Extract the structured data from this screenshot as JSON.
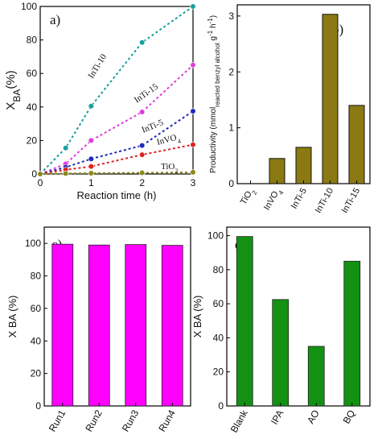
{
  "chart_data": [
    {
      "panel": "a)",
      "type": "scatter",
      "xlabel": "Reaction time (h)",
      "ylabel_main": "X",
      "ylabel_sub": "BA",
      "ylabel_unit": "(%)",
      "xlim": [
        0,
        3
      ],
      "ylim": [
        0,
        100
      ],
      "xticks": [
        "0",
        "1",
        "2",
        "3"
      ],
      "yticks": [
        "0",
        "20",
        "40",
        "60",
        "80",
        "100"
      ],
      "series": [
        {
          "name": "InTi-10",
          "color": "#1a9e9e",
          "x": [
            0,
            0.5,
            1,
            2,
            3
          ],
          "y": [
            0,
            15.5,
            40.5,
            78.5,
            100
          ]
        },
        {
          "name": "InTi-15",
          "color": "#dd3ddd",
          "x": [
            0,
            0.5,
            1,
            2,
            3
          ],
          "y": [
            0,
            6,
            20,
            37,
            65
          ]
        },
        {
          "name": "InTi-5",
          "color": "#1d2bb8",
          "x": [
            0,
            0.5,
            1,
            2,
            3
          ],
          "y": [
            0,
            4,
            9,
            17,
            37.5
          ]
        },
        {
          "name": "InVO",
          "sub": "4",
          "color": "#dd2222",
          "x": [
            0,
            0.5,
            1,
            2,
            3
          ],
          "y": [
            0,
            2.5,
            4.5,
            11.5,
            17.5
          ]
        },
        {
          "name": "TiO",
          "sub": "2",
          "color": "#8a8a1a",
          "x": [
            0,
            0.5,
            1,
            2,
            3
          ],
          "y": [
            0,
            0.3,
            0.5,
            0.7,
            1
          ]
        }
      ]
    },
    {
      "panel": "b)",
      "type": "bar",
      "ylabel": "Productivity (mmol reacted benzyl alcohol g⁻¹ h⁻¹)",
      "ylabel_parts": {
        "a": "Productivity (mmol",
        "b": "reacted benzyl alcohol",
        "c": " g",
        "d": "-1",
        "e": " h",
        "f": "-1",
        "g": ")"
      },
      "ylim": [
        0,
        3.2
      ],
      "yticks": [
        "0",
        "1",
        "2",
        "3"
      ],
      "categories": [
        {
          "label": "TiO",
          "sub": "2"
        },
        {
          "label": "InVO",
          "sub": "4"
        },
        {
          "label": "InTi-5",
          "sub": ""
        },
        {
          "label": "InTi-10",
          "sub": ""
        },
        {
          "label": "InTi-15",
          "sub": ""
        }
      ],
      "values": [
        0,
        0.45,
        0.65,
        3.03,
        1.4
      ],
      "color": "#8b7a13"
    },
    {
      "panel": "c)",
      "type": "bar",
      "ylabel": "X BA (%)",
      "ylim": [
        0,
        110
      ],
      "yticks": [
        "0",
        "20",
        "40",
        "60",
        "80",
        "100"
      ],
      "categories": [
        "Run1",
        "Run2",
        "Run3",
        "Run4"
      ],
      "values": [
        99.5,
        99,
        99.3,
        98.8
      ],
      "color": "#ff00ff"
    },
    {
      "panel": "d)",
      "type": "bar",
      "ylabel": "X BA (%)",
      "ylim": [
        0,
        105
      ],
      "yticks": [
        "0",
        "20",
        "40",
        "60",
        "80",
        "100"
      ],
      "categories": [
        "Blank",
        "IPA",
        "AO",
        "BQ"
      ],
      "values": [
        99.5,
        62.5,
        35,
        85
      ],
      "color": "#139113"
    }
  ]
}
